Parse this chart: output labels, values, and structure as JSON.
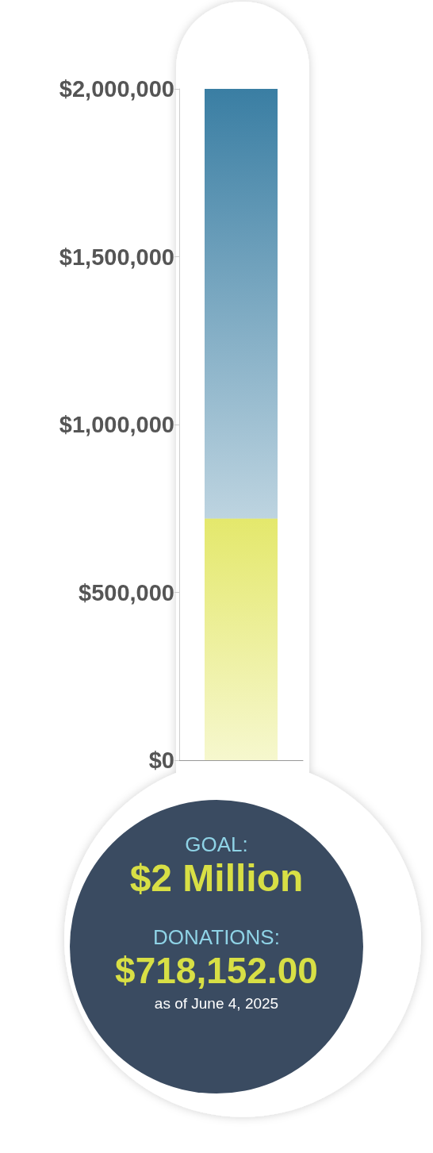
{
  "chart_data": {
    "type": "bar",
    "stacked": true,
    "categories": [
      null
    ],
    "series": [
      {
        "color": "#e4e86c",
        "values": [
          720000
        ]
      },
      {
        "color": "#3a7ea3",
        "values": [
          1280000
        ]
      }
    ],
    "ylim": [
      0,
      2000000
    ],
    "yticks": [
      {
        "value": 0,
        "label": "$0"
      },
      {
        "value": 500000,
        "label": "$500,000"
      },
      {
        "value": 1000000,
        "label": "$1,000,000"
      },
      {
        "value": 1500000,
        "label": "$1,500,000"
      },
      {
        "value": 2000000,
        "label": "$2,000,000"
      }
    ],
    "annotations": [
      "GOAL:",
      "$2 Million",
      "DONATIONS:",
      "$718,152.00",
      "as of June 4, 2025"
    ]
  }
}
